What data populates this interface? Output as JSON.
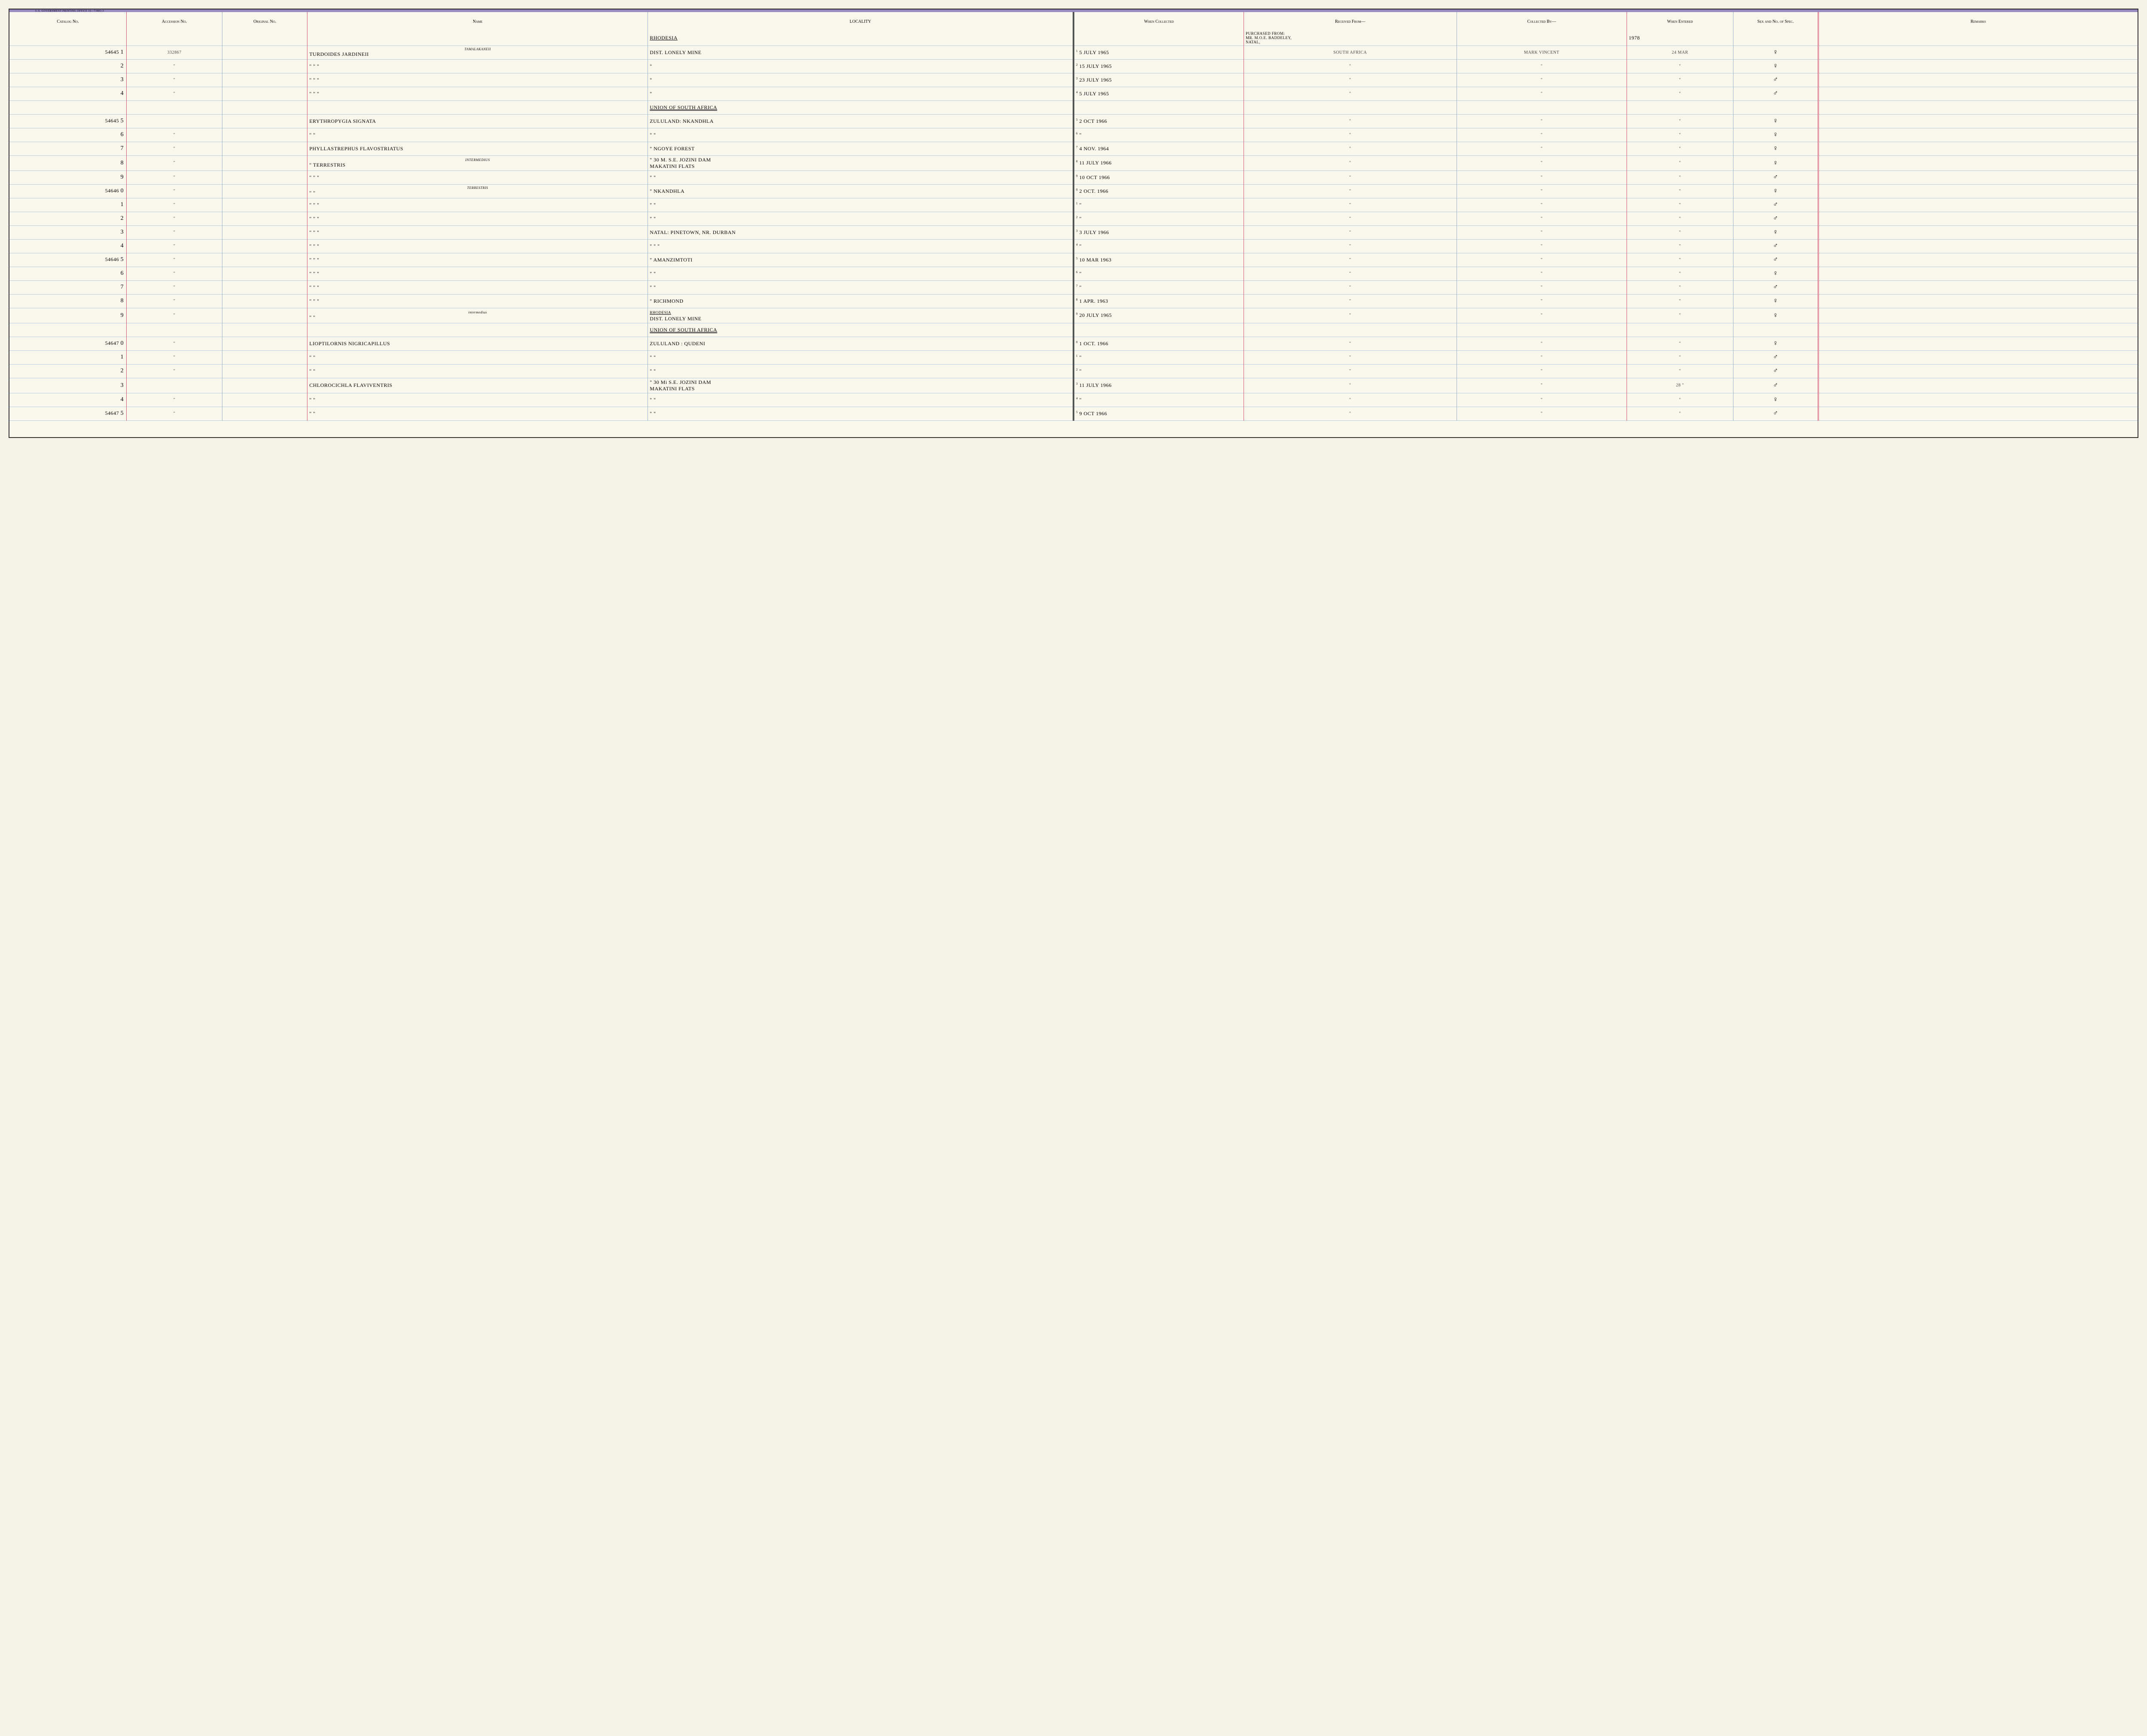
{
  "gov_print_text": "U.S. GOVERNMENT PRINTING OFFICE    16—73881-3",
  "headers": {
    "catalog": "Catalog\nNo.",
    "accession": "Accession\nNo.",
    "original": "Original\nNo.",
    "name": "Name",
    "locality": "LOCALITY",
    "when_collected": "When\nCollected",
    "received_from": "Received From—",
    "collected_by": "Collected By—",
    "when_entered": "When\nEntered",
    "sex": "Sex and\nNo. of\nSpec.",
    "remarks": "Remarks"
  },
  "top_notes": {
    "region1": "RHODESIA",
    "purchased": "PURCHASED FROM:\nMR. M.O.E. BADDELEY,\nNATAL,",
    "year": "1978"
  },
  "rows": [
    {
      "catalog": "54645",
      "digit": "1",
      "idx": "1",
      "accession": "332867",
      "name": "TURDOIDES JARDINEII",
      "subspecies": "TAMALAKANEII",
      "locality": "DIST. LONELY MINE",
      "when_collected": "5 JULY 1965",
      "received_from": "SOUTH AFRICA",
      "collected_by": "MARK VINCENT",
      "when_entered": "24 MAR",
      "sex": "♀"
    },
    {
      "catalog": "",
      "digit": "2",
      "idx": "2",
      "accession": "\"",
      "name": "\"         \"         \"",
      "locality": "\"",
      "when_collected": "15 JULY 1965",
      "received_from": "\"",
      "collected_by": "\"",
      "when_entered": "\"",
      "sex": "♀"
    },
    {
      "catalog": "",
      "digit": "3",
      "idx": "3",
      "accession": "\"",
      "name": "\"         \"         \"",
      "locality": "\"",
      "when_collected": "23 JULY 1965",
      "received_from": "\"",
      "collected_by": "\"",
      "when_entered": "\"",
      "sex": "♂"
    },
    {
      "catalog": "",
      "digit": "4",
      "idx": "4",
      "accession": "\"",
      "name": "\"         \"         \"",
      "locality": "\"",
      "when_collected": "5 JULY 1965",
      "received_from": "\"",
      "collected_by": "\"",
      "when_entered": "\"",
      "sex": "♂"
    },
    {
      "region": "UNION OF SOUTH AFRICA"
    },
    {
      "catalog": "54645",
      "digit": "5",
      "idx": "5",
      "accession": "",
      "name": "ERYTHROPYGIA SIGNATA",
      "locality": "ZULULAND: NKANDHLA",
      "when_collected": "2 OCT 1966",
      "received_from": "\"",
      "collected_by": "\"",
      "when_entered": "\"",
      "sex": "♀"
    },
    {
      "catalog": "",
      "digit": "6",
      "idx": "6",
      "accession": "\"",
      "name": "\"            \"",
      "locality": "\"           \"",
      "when_collected": "\"",
      "received_from": "\"",
      "collected_by": "\"",
      "when_entered": "\"",
      "sex": "♀"
    },
    {
      "catalog": "",
      "digit": "7",
      "idx": "7",
      "accession": "\"",
      "name": "PHYLLASTREPHUS FLAVOSTRIATUS",
      "locality": "\"      NGOYE FOREST",
      "when_collected": "4 NOV. 1964",
      "received_from": "\"",
      "collected_by": "\"",
      "when_entered": "\"",
      "sex": "♀"
    },
    {
      "catalog": "",
      "digit": "8",
      "idx": "8",
      "accession": "\"",
      "name": "\"      TERRESTRIS",
      "subspecies": "INTERMEDIUS",
      "locality": "\"   30 M. S.E. JOZINI DAM\nMAKATINI FLATS",
      "when_collected": "11 JULY 1966",
      "received_from": "\"",
      "collected_by": "\"",
      "when_entered": "\"",
      "sex": "♀"
    },
    {
      "catalog": "",
      "digit": "9",
      "idx": "9",
      "accession": "\"",
      "name": "\"         \"         \"",
      "locality": "\"            \"",
      "when_collected": "10 OCT 1966",
      "received_from": "\"",
      "collected_by": "\"",
      "when_entered": "\"",
      "sex": "♂"
    },
    {
      "catalog": "54646",
      "digit": "0",
      "idx": "0",
      "accession": "\"",
      "name": "\"         \"",
      "subspecies": "TERRESTRIS",
      "locality": "\"      NKANDHLA",
      "when_collected": "2 OCT. 1966",
      "received_from": "\"",
      "collected_by": "\"",
      "when_entered": "\"",
      "sex": "♀"
    },
    {
      "catalog": "",
      "digit": "1",
      "idx": "1",
      "accession": "\"",
      "name": "\"         \"         \"",
      "locality": "\"            \"",
      "when_collected": "\"",
      "received_from": "\"",
      "collected_by": "\"",
      "when_entered": "\"",
      "sex": "♂"
    },
    {
      "catalog": "",
      "digit": "2",
      "idx": "2",
      "accession": "\"",
      "name": "\"         \"         \"",
      "locality": "\"            \"",
      "when_collected": "\"",
      "received_from": "\"",
      "collected_by": "\"",
      "when_entered": "\"",
      "sex": "♂"
    },
    {
      "catalog": "",
      "digit": "3",
      "idx": "3",
      "accession": "\"",
      "name": "\"         \"         \"",
      "locality": "NATAL: PINETOWN, NR. DURBAN",
      "when_collected": "3 JULY 1966",
      "received_from": "\"",
      "collected_by": "\"",
      "when_entered": "\"",
      "sex": "♀"
    },
    {
      "catalog": "",
      "digit": "4",
      "idx": "4",
      "accession": "\"",
      "name": "\"         \"         \"",
      "locality": "\"         \"         \"",
      "when_collected": "\"",
      "received_from": "\"",
      "collected_by": "\"",
      "when_entered": "\"",
      "sex": "♂"
    },
    {
      "catalog": "54646",
      "digit": "5",
      "idx": "5",
      "accession": "\"",
      "name": "\"         \"         \"",
      "locality": "\"    AMANZIMTOTI",
      "when_collected": "10 MAR 1963",
      "received_from": "\"",
      "collected_by": "\"",
      "when_entered": "\"",
      "sex": "♂"
    },
    {
      "catalog": "",
      "digit": "6",
      "idx": "6",
      "accession": "\"",
      "name": "\"         \"         \"",
      "locality": "\"            \"",
      "when_collected": "\"",
      "received_from": "\"",
      "collected_by": "\"",
      "when_entered": "\"",
      "sex": "♀"
    },
    {
      "catalog": "",
      "digit": "7",
      "idx": "7",
      "accession": "\"",
      "name": "\"         \"         \"",
      "locality": "\"            \"",
      "when_collected": "\"",
      "received_from": "\"",
      "collected_by": "\"",
      "when_entered": "\"",
      "sex": "♂"
    },
    {
      "catalog": "",
      "digit": "8",
      "idx": "8",
      "accession": "\"",
      "name": "\"         \"         \"",
      "locality": "\"      RICHMOND",
      "when_collected": "1 APR. 1963",
      "received_from": "\"",
      "collected_by": "\"",
      "when_entered": "\"",
      "sex": "♀"
    },
    {
      "catalog": "",
      "digit": "9",
      "idx": "9",
      "accession": "\"",
      "name": "\"         \"",
      "subspecies": "intermedius",
      "locality": "RHODESIA\nDIST. LONELY MINE",
      "locality_region": true,
      "when_collected": "20 JULY 1965",
      "received_from": "\"",
      "collected_by": "\"",
      "when_entered": "\"",
      "sex": "♀"
    },
    {
      "region": "UNION OF SOUTH AFRICA"
    },
    {
      "catalog": "54647",
      "digit": "0",
      "idx": "0",
      "accession": "\"",
      "name": "LIOPTILORNIS NIGRICAPILLUS",
      "locality": "ZULULAND : QUDENI",
      "when_collected": "1 OCT. 1966",
      "received_from": "\"",
      "collected_by": "\"",
      "when_entered": "\"",
      "sex": "♀"
    },
    {
      "catalog": "",
      "digit": "1",
      "idx": "1",
      "accession": "\"",
      "name": "\"            \"",
      "locality": "\"            \"",
      "when_collected": "\"",
      "received_from": "\"",
      "collected_by": "\"",
      "when_entered": "\"",
      "sex": "♂"
    },
    {
      "catalog": "",
      "digit": "2",
      "idx": "2",
      "accession": "\"",
      "name": "\"            \"",
      "locality": "\"            \"",
      "when_collected": "\"",
      "received_from": "\"",
      "collected_by": "\"",
      "when_entered": "\"",
      "sex": "♂"
    },
    {
      "catalog": "",
      "digit": "3",
      "idx": "3",
      "accession": "",
      "name": "CHLOROCICHLA FLAVIVENTRIS",
      "locality": "\"   30 Mi S.E. JOZINI DAM\nMAKATINI FLATS",
      "when_collected": "11 JULY 1966",
      "received_from": "\"",
      "collected_by": "\"",
      "when_entered": "28  \"",
      "sex": "♂"
    },
    {
      "catalog": "",
      "digit": "4",
      "idx": "4",
      "accession": "\"",
      "name": "\"            \"",
      "locality": "\"            \"",
      "when_collected": "\"",
      "received_from": "\"",
      "collected_by": "\"",
      "when_entered": "\"",
      "sex": "♀"
    },
    {
      "catalog": "54647",
      "digit": "5",
      "idx": "5",
      "accession": "\"",
      "name": "\"            \"",
      "locality": "\"            \"",
      "when_collected": "9 OCT 1966",
      "received_from": "\"",
      "collected_by": "\"",
      "when_entered": "\"",
      "sex": "♂"
    }
  ],
  "colors": {
    "page_bg": "#faf8ed",
    "red_rule": "#d4546f",
    "blue_rule": "#b8cfdb",
    "purple_border": "#8b7bb8",
    "spine": "#555"
  }
}
